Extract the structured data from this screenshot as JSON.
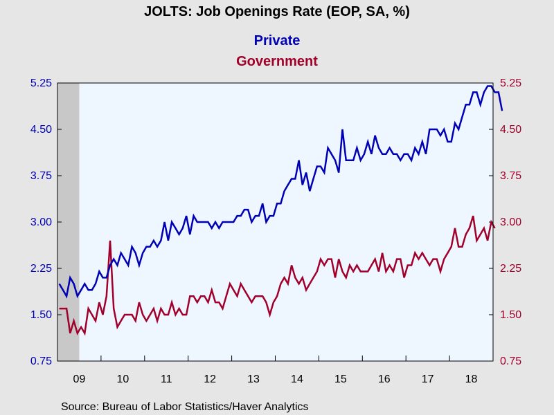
{
  "chart_data": {
    "type": "line",
    "title": "JOLTS: Job Openings Rate (EOP, SA, %)",
    "subtitle": "",
    "source": "Source:  Bureau of Labor Statistics/Haver Analytics",
    "x_start": "2009-01",
    "x_end": "2018-12",
    "x_ticks": [
      "09",
      "10",
      "11",
      "12",
      "13",
      "14",
      "15",
      "16",
      "17",
      "18"
    ],
    "recession_shading": {
      "start": "2009-01",
      "end": "2009-06"
    },
    "ylim": [
      0.75,
      5.25
    ],
    "y_ticks_left": [
      "0.75",
      "1.50",
      "2.25",
      "3.00",
      "3.75",
      "4.50",
      "5.25"
    ],
    "y_ticks_right": [
      "0.75",
      "1.50",
      "2.25",
      "3.00",
      "3.75",
      "4.50",
      "5.25"
    ],
    "legend_placement": "top-center",
    "colors": {
      "private": "#0000b4",
      "government": "#a0002a",
      "plot_bg": "#eef6ff",
      "recession": "#c8c8c8"
    },
    "series": [
      {
        "name": "Private",
        "axis": "left",
        "values": [
          2.0,
          1.9,
          1.8,
          2.1,
          2.0,
          1.8,
          1.9,
          2.0,
          1.9,
          1.9,
          2.0,
          2.2,
          2.1,
          2.1,
          2.3,
          2.4,
          2.3,
          2.5,
          2.4,
          2.3,
          2.6,
          2.5,
          2.3,
          2.5,
          2.6,
          2.6,
          2.7,
          2.6,
          2.7,
          3.0,
          2.7,
          3.0,
          2.9,
          2.8,
          2.9,
          3.1,
          2.8,
          3.1,
          3.0,
          3.0,
          3.0,
          3.0,
          2.9,
          3.0,
          2.9,
          3.0,
          3.0,
          3.0,
          3.0,
          3.1,
          3.1,
          3.2,
          3.2,
          3.0,
          3.1,
          3.1,
          3.3,
          3.0,
          3.1,
          3.1,
          3.3,
          3.3,
          3.5,
          3.6,
          3.7,
          3.7,
          4.0,
          3.6,
          3.8,
          3.5,
          3.7,
          3.9,
          3.9,
          3.8,
          4.2,
          4.1,
          4.0,
          3.8,
          4.5,
          4.0,
          4.0,
          4.0,
          4.2,
          4.0,
          4.1,
          4.3,
          4.1,
          4.4,
          4.2,
          4.1,
          4.1,
          4.2,
          4.1,
          4.1,
          4.0,
          4.1,
          4.1,
          4.0,
          4.2,
          4.1,
          4.3,
          4.1,
          4.5,
          4.5,
          4.5,
          4.4,
          4.5,
          4.3,
          4.3,
          4.6,
          4.5,
          4.7,
          4.9,
          4.9,
          5.1,
          5.1,
          4.9,
          5.1,
          5.2,
          5.2,
          5.1,
          5.1,
          4.8
        ]
      },
      {
        "name": "Government",
        "axis": "right",
        "values": [
          1.6,
          1.6,
          1.6,
          1.2,
          1.4,
          1.2,
          1.3,
          1.2,
          1.6,
          1.5,
          1.4,
          1.7,
          1.5,
          1.8,
          2.7,
          1.6,
          1.3,
          1.4,
          1.5,
          1.5,
          1.5,
          1.4,
          1.7,
          1.5,
          1.4,
          1.5,
          1.6,
          1.4,
          1.6,
          1.5,
          1.5,
          1.7,
          1.5,
          1.6,
          1.5,
          1.5,
          1.8,
          1.8,
          1.7,
          1.8,
          1.8,
          1.7,
          1.9,
          1.7,
          1.7,
          1.6,
          1.8,
          2.0,
          1.9,
          1.8,
          2.0,
          1.9,
          1.8,
          1.7,
          1.8,
          1.8,
          1.8,
          1.7,
          1.5,
          1.7,
          1.8,
          2.0,
          2.1,
          2.0,
          2.3,
          2.1,
          2.0,
          2.1,
          1.9,
          2.0,
          2.1,
          2.2,
          2.4,
          2.3,
          2.4,
          2.4,
          2.1,
          2.4,
          2.2,
          2.1,
          2.3,
          2.2,
          2.3,
          2.2,
          2.2,
          2.2,
          2.3,
          2.4,
          2.2,
          2.5,
          2.2,
          2.3,
          2.2,
          2.4,
          2.4,
          2.1,
          2.3,
          2.3,
          2.5,
          2.4,
          2.5,
          2.4,
          2.3,
          2.4,
          2.4,
          2.2,
          2.4,
          2.5,
          2.6,
          2.9,
          2.6,
          2.6,
          2.8,
          2.9,
          3.1,
          2.7,
          2.8,
          2.9,
          2.7,
          3.0,
          2.9
        ]
      }
    ]
  }
}
